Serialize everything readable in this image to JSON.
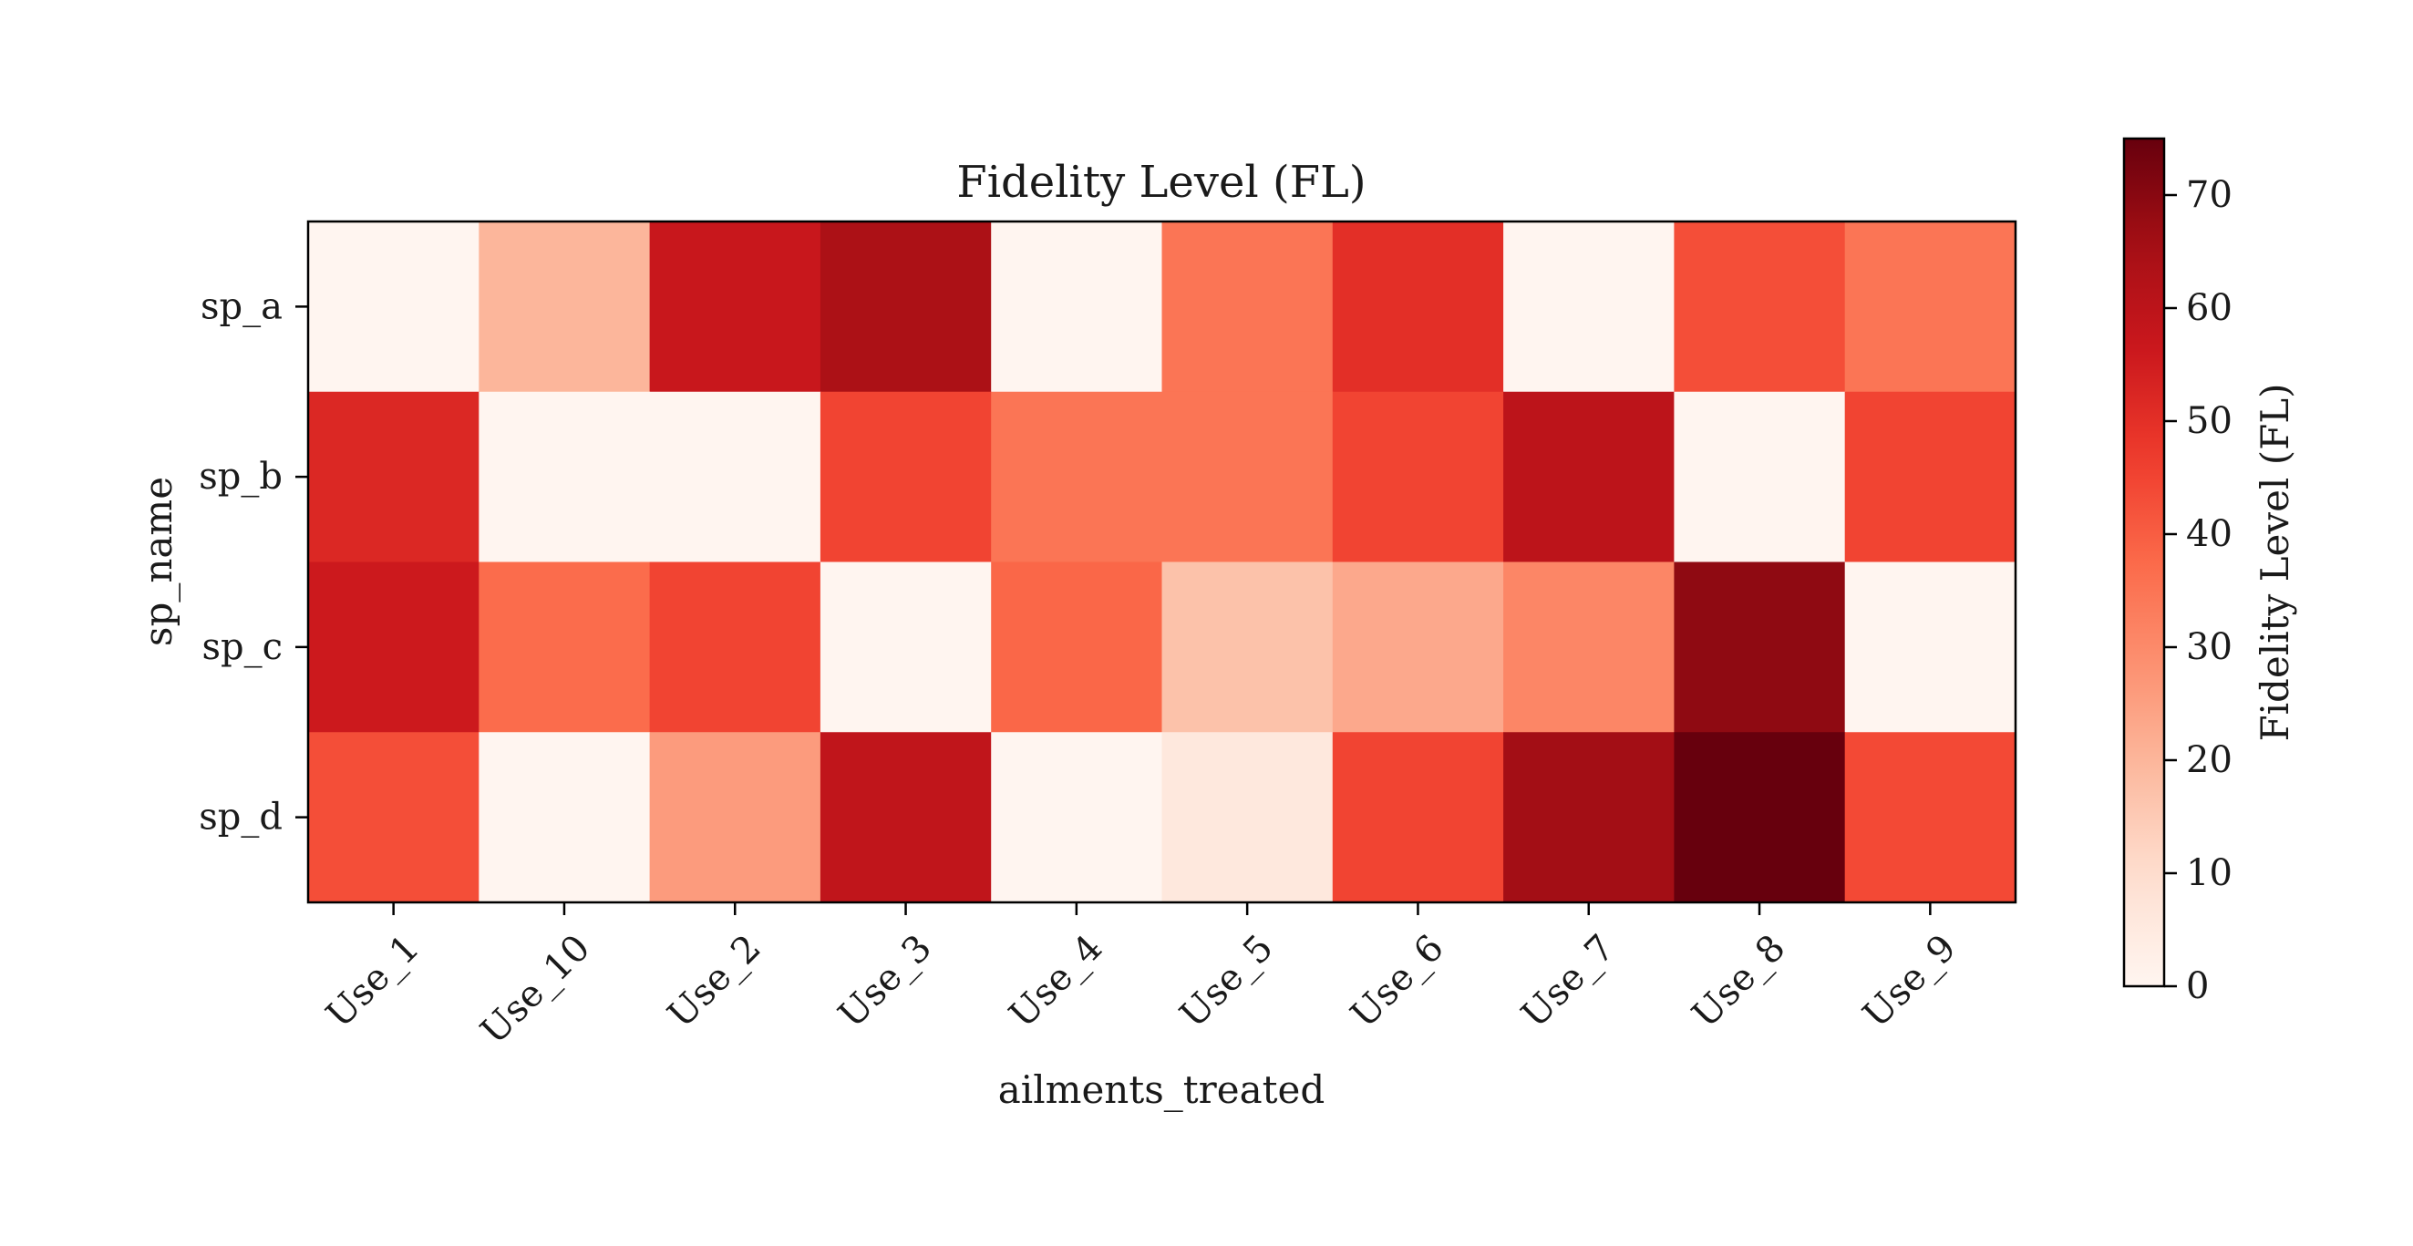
{
  "chart_data": {
    "type": "heatmap",
    "title": "Fidelity Level (FL)",
    "xlabel": "ailments_treated",
    "ylabel": "sp_name",
    "x_categories": [
      "Use_1",
      "Use_10",
      "Use_2",
      "Use_3",
      "Use_4",
      "Use_5",
      "Use_6",
      "Use_7",
      "Use_8",
      "Use_9"
    ],
    "y_categories": [
      "sp_a",
      "sp_b",
      "sp_c",
      "sp_d"
    ],
    "values": [
      [
        0,
        20,
        57,
        64,
        0,
        35,
        50,
        0,
        43,
        35
      ],
      [
        52,
        0,
        0,
        45,
        35,
        35,
        45,
        60,
        0,
        45
      ],
      [
        56,
        37,
        45,
        0,
        38,
        17,
        23,
        31,
        69,
        0
      ],
      [
        43,
        0,
        26,
        59,
        0,
        6,
        45,
        66,
        75,
        44
      ]
    ],
    "colorbar": {
      "label": "Fidelity Level (FL)",
      "min": 0,
      "max": 75,
      "ticks": [
        "0",
        "10",
        "20",
        "30",
        "40",
        "50",
        "60",
        "70"
      ],
      "colormap": "Reds"
    },
    "grid": false
  }
}
